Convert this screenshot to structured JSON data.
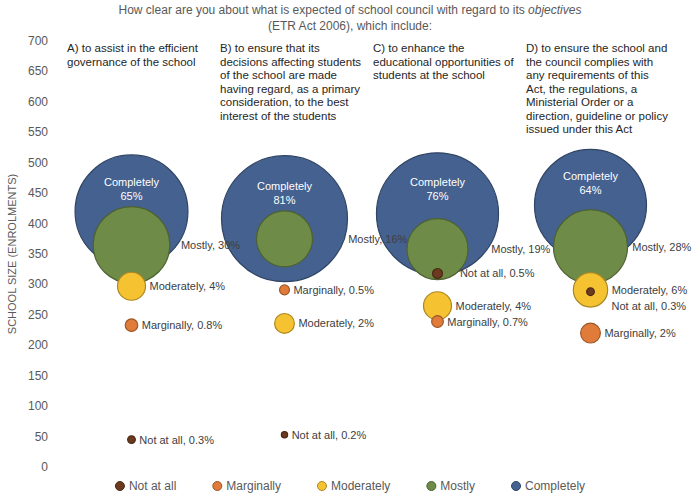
{
  "chart_data": {
    "type": "bubble",
    "title": "How clear are you about what is expected of school council with regard to its objectives",
    "subtitle": "(ETR Act 2006), which include:",
    "ylabel": "SCHOOL SIZE (ENROLMENTS)",
    "categories": [
      "A) to assist in the efficient governance of the school",
      "B) to ensure that its decisions affecting students of the school are made having regard, as a primary consideration, to the best interest of the students",
      "C) to enhance the educational opportunities of students at the school",
      "D) to ensure the school and the council complies with any requirements of this Act, the regulations, a Ministerial Order or a direction, guideline or policy issued under this Act"
    ],
    "ylim": [
      0,
      700
    ],
    "yticks": [
      0,
      50,
      100,
      150,
      200,
      250,
      300,
      350,
      400,
      450,
      500,
      550,
      600,
      650,
      700
    ],
    "grid": false,
    "legend": "bottom",
    "data_labels": true,
    "series": [
      {
        "name": "Not at all",
        "color": "#6b3a1f",
        "values": [
          45,
          53,
          318,
          288
        ],
        "sizes": [
          0.3,
          0.2,
          0.5,
          0.3
        ],
        "size_labels": [
          "Not at all, 0.3%",
          "Not at all, 0.2%",
          "Not at all, 0.5%",
          "Not at all, 0.3%"
        ]
      },
      {
        "name": "Marginally",
        "color": "#e07b39",
        "values": [
          233,
          291,
          239,
          220
        ],
        "sizes": [
          0.8,
          0.5,
          0.7,
          2
        ],
        "size_labels": [
          "Marginally, 0.8%",
          "Marginally, 0.5%",
          "Marginally, 0.7%",
          "Marginally, 2%"
        ]
      },
      {
        "name": "Moderately",
        "color": "#f5c232",
        "values": [
          297,
          236,
          265,
          291
        ],
        "sizes": [
          4,
          2,
          4,
          6
        ],
        "size_labels": [
          "Moderately, 4%",
          "Moderately, 2%",
          "Moderately, 4%",
          "Moderately, 6%"
        ]
      },
      {
        "name": "Mostly",
        "color": "#6e8b47",
        "values": [
          365,
          375,
          358,
          362
        ],
        "sizes": [
          30,
          16,
          19,
          28
        ],
        "size_labels": [
          "Mostly, 30%",
          "Mostly, 16%",
          "Mostly, 19%",
          "Mostly, 28%"
        ]
      },
      {
        "name": "Completely",
        "color": "#44618f",
        "values": [
          420,
          408,
          416,
          430
        ],
        "sizes": [
          65,
          81,
          76,
          64
        ],
        "size_labels": [
          "Completely 65%",
          "Completely 81%",
          "Completely 76%",
          "Completely 64%"
        ]
      }
    ]
  }
}
